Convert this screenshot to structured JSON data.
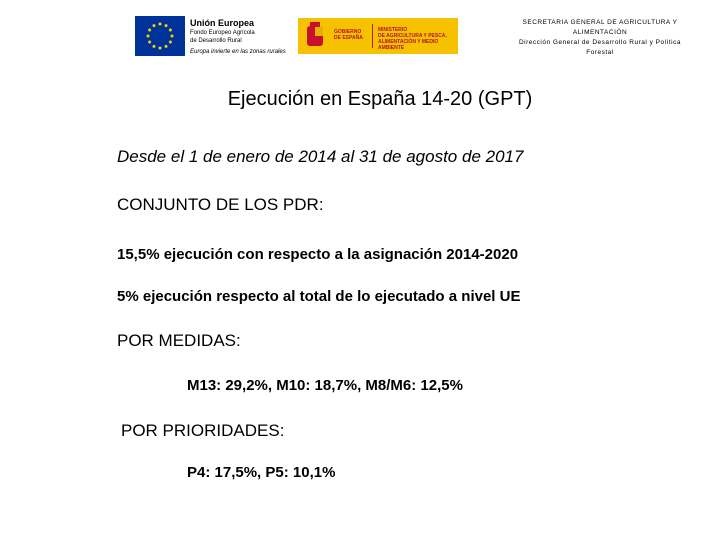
{
  "header": {
    "eu_logo": {
      "title": "Unión Europea",
      "fund_line1": "Fondo Europeo Agrícola",
      "fund_line2": "de Desarrollo Rural",
      "motto": "Europa invierte en las zonas rurales"
    },
    "spain_logo": {
      "gov_line1": "GOBIERNO",
      "gov_line2": "DE ESPAÑA",
      "ministry_line1": "MINISTERIO",
      "ministry_line2": "DE AGRICULTURA Y PESCA,",
      "ministry_line3": "ALIMENTACIÓN Y MEDIO AMBIENTE"
    },
    "department": {
      "line1": "SECRETARIA GENERAL DE AGRICULTURA Y",
      "line2": "ALIMENTACIÓN",
      "line3": "Dirección General de Desarrollo Rural y Política",
      "line4": "Forestal"
    }
  },
  "title": "Ejecución en España 14-20 (GPT)",
  "period": "Desde el 1 de enero de 2014 al 31 de agosto de 2017",
  "overall": {
    "heading": "CONJUNTO DE LOS PDR:",
    "items": [
      "15,5% ejecución con respecto a la asignación 2014-2020",
      "5% ejecución respecto al total de lo ejecutado a nivel UE"
    ]
  },
  "measures": {
    "heading": "POR MEDIDAS:",
    "text": "M13: 29,2%, M10: 18,7%,  M8/M6: 12,5%"
  },
  "priorities": {
    "heading": "POR PRIORIDADES:",
    "text": "P4: 17,5%, P5: 10,1%"
  }
}
